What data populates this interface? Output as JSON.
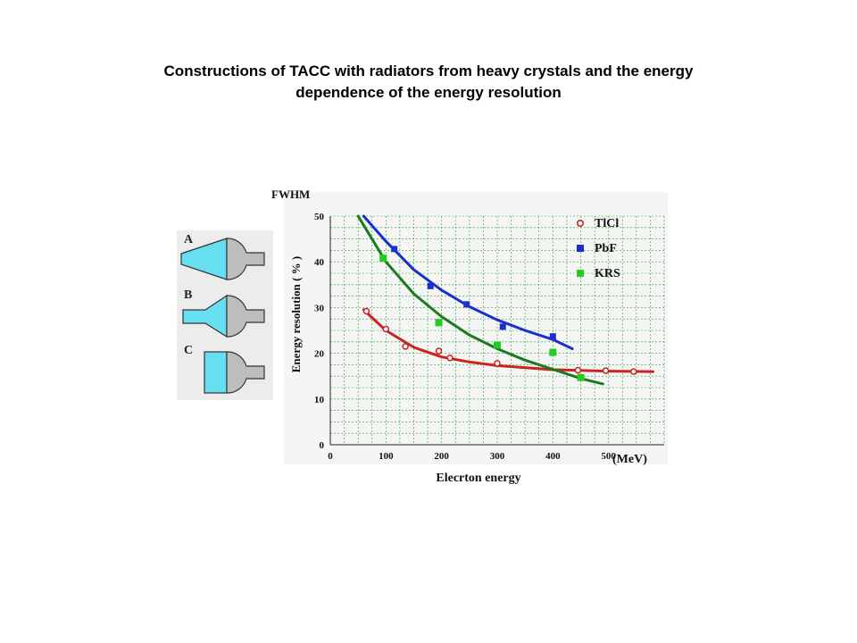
{
  "title": {
    "line1": "Constructions of TACC with radiators from heavy crystals and  the energy",
    "line2": "dependence of the energy resolution"
  },
  "diagram": {
    "labels": [
      "A",
      "B",
      "C"
    ],
    "colors": {
      "radiator": "#66e0f0",
      "pmt": "#bdbdbd"
    }
  },
  "chart_data": {
    "type": "scatter",
    "ylabel_top": "FWHM",
    "ylabel": "Energy resolution  ( % )",
    "xlabel": "Elecrton energy",
    "xunit": "(MeV)",
    "xlim": [
      0,
      600
    ],
    "ylim": [
      0,
      50
    ],
    "xticks": [
      0,
      100,
      200,
      300,
      400,
      500
    ],
    "yticks": [
      0,
      10,
      20,
      30,
      40,
      50
    ],
    "grid": true,
    "legend_position": "top-right",
    "series": [
      {
        "name": "TlCl",
        "color": "#cc2222",
        "marker": "circle-open",
        "points": [
          [
            65,
            29.2
          ],
          [
            100,
            25.3
          ],
          [
            135,
            21.5
          ],
          [
            195,
            20.5
          ],
          [
            215,
            19
          ],
          [
            300,
            17.8
          ],
          [
            445,
            16.3
          ],
          [
            495,
            16.2
          ],
          [
            545,
            16
          ]
        ],
        "fit": [
          [
            60,
            29.5
          ],
          [
            100,
            25
          ],
          [
            150,
            21.3
          ],
          [
            200,
            19.2
          ],
          [
            250,
            18.1
          ],
          [
            300,
            17.3
          ],
          [
            400,
            16.4
          ],
          [
            500,
            16.1
          ],
          [
            580,
            16
          ]
        ]
      },
      {
        "name": "PbF",
        "color": "#1a2fcc",
        "marker": "square",
        "points": [
          [
            115,
            42.8
          ],
          [
            180,
            34.7
          ],
          [
            245,
            30.7
          ],
          [
            310,
            25.8
          ],
          [
            400,
            23.7
          ]
        ],
        "fit": [
          [
            60,
            50
          ],
          [
            100,
            44.5
          ],
          [
            150,
            38.3
          ],
          [
            200,
            33.8
          ],
          [
            250,
            30.2
          ],
          [
            300,
            27.3
          ],
          [
            350,
            25
          ],
          [
            400,
            23
          ],
          [
            435,
            21
          ]
        ]
      },
      {
        "name": "KRS",
        "color": "#22cc22",
        "marker": "square",
        "points": [
          [
            95,
            40.8
          ],
          [
            195,
            26.7
          ],
          [
            300,
            21.8
          ],
          [
            400,
            20.2
          ],
          [
            450,
            14.7
          ]
        ],
        "fit": [
          [
            50,
            50
          ],
          [
            100,
            40
          ],
          [
            150,
            33
          ],
          [
            200,
            28
          ],
          [
            250,
            24
          ],
          [
            300,
            21
          ],
          [
            350,
            18.5
          ],
          [
            400,
            16.5
          ],
          [
            450,
            14.5
          ],
          [
            490,
            13.3
          ]
        ]
      }
    ]
  }
}
